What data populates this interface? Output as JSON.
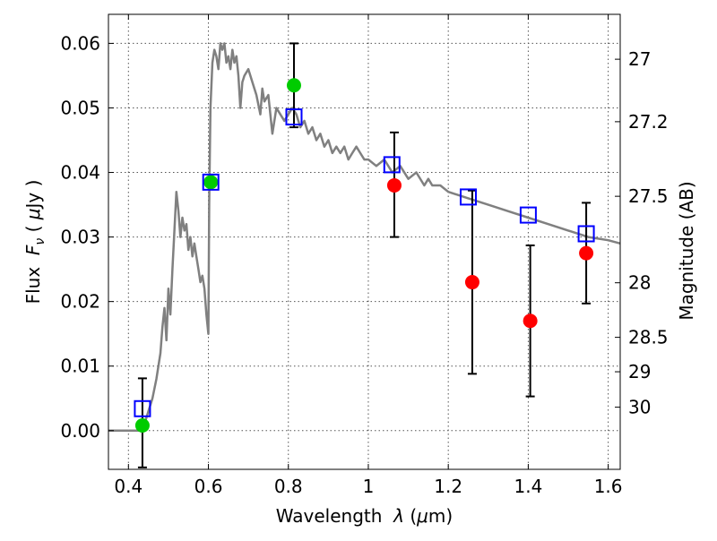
{
  "chart_data": {
    "type": "scatter",
    "xlabel": "Wavelength",
    "xlabel_symbol": "λ",
    "xlabel_unit_open": " (",
    "xlabel_unit_symbol": "μ",
    "xlabel_unit_rest": "m)",
    "ylabel": "Flux",
    "ylabel_symbol": "F",
    "ylabel_symbol_sub": "ν",
    "ylabel_unit_open": " ( ",
    "ylabel_unit_symbol": "μ",
    "ylabel_unit_rest": "Jy )",
    "y2label": "Magnitude (AB)",
    "xlim": [
      0.35,
      1.63
    ],
    "ylim": [
      -0.006,
      0.0645
    ],
    "grid": true,
    "x_ticks": [
      {
        "value": 0.4,
        "label": "0.4"
      },
      {
        "value": 0.6,
        "label": "0.6"
      },
      {
        "value": 0.8,
        "label": "0.8"
      },
      {
        "value": 1.0,
        "label": "1"
      },
      {
        "value": 1.2,
        "label": "1.2"
      },
      {
        "value": 1.4,
        "label": "1.4"
      },
      {
        "value": 1.6,
        "label": "1.6"
      }
    ],
    "y_ticks": [
      {
        "value": 0.0,
        "label": "0.00"
      },
      {
        "value": 0.01,
        "label": "0.01"
      },
      {
        "value": 0.02,
        "label": "0.02"
      },
      {
        "value": 0.03,
        "label": "0.03"
      },
      {
        "value": 0.04,
        "label": "0.04"
      },
      {
        "value": 0.05,
        "label": "0.05"
      },
      {
        "value": 0.06,
        "label": "0.06"
      }
    ],
    "y2_ticks": [
      {
        "value": 27,
        "label": "27"
      },
      {
        "value": 27.2,
        "label": "27.2"
      },
      {
        "value": 27.5,
        "label": "27.5"
      },
      {
        "value": 28,
        "label": "28"
      },
      {
        "value": 28.5,
        "label": "28.5"
      },
      {
        "value": 29,
        "label": "29"
      },
      {
        "value": 30,
        "label": "30"
      }
    ],
    "model_spectrum": {
      "color": "#808080",
      "x": [
        0.35,
        0.4,
        0.43,
        0.44,
        0.45,
        0.46,
        0.47,
        0.48,
        0.485,
        0.49,
        0.495,
        0.5,
        0.505,
        0.51,
        0.515,
        0.52,
        0.525,
        0.53,
        0.535,
        0.54,
        0.545,
        0.55,
        0.555,
        0.56,
        0.565,
        0.57,
        0.575,
        0.58,
        0.585,
        0.59,
        0.595,
        0.6,
        0.602,
        0.605,
        0.61,
        0.615,
        0.62,
        0.625,
        0.63,
        0.635,
        0.64,
        0.645,
        0.65,
        0.655,
        0.66,
        0.665,
        0.67,
        0.675,
        0.68,
        0.685,
        0.69,
        0.7,
        0.71,
        0.72,
        0.73,
        0.735,
        0.74,
        0.75,
        0.76,
        0.77,
        0.78,
        0.79,
        0.8,
        0.81,
        0.82,
        0.83,
        0.84,
        0.85,
        0.86,
        0.87,
        0.88,
        0.89,
        0.9,
        0.91,
        0.92,
        0.93,
        0.94,
        0.95,
        0.96,
        0.97,
        0.98,
        0.99,
        1.0,
        1.02,
        1.04,
        1.06,
        1.08,
        1.1,
        1.12,
        1.14,
        1.15,
        1.16,
        1.18,
        1.2,
        1.25,
        1.3,
        1.35,
        1.4,
        1.45,
        1.5,
        1.55,
        1.6,
        1.63
      ],
      "y": [
        0.0,
        0.0,
        0.0,
        0.001,
        0.003,
        0.005,
        0.008,
        0.012,
        0.016,
        0.019,
        0.014,
        0.022,
        0.018,
        0.025,
        0.031,
        0.037,
        0.034,
        0.03,
        0.033,
        0.031,
        0.032,
        0.028,
        0.03,
        0.027,
        0.029,
        0.027,
        0.025,
        0.023,
        0.024,
        0.022,
        0.018,
        0.015,
        0.035,
        0.05,
        0.057,
        0.059,
        0.058,
        0.056,
        0.06,
        0.059,
        0.06,
        0.057,
        0.058,
        0.056,
        0.059,
        0.057,
        0.058,
        0.055,
        0.05,
        0.054,
        0.055,
        0.056,
        0.054,
        0.052,
        0.049,
        0.053,
        0.051,
        0.052,
        0.046,
        0.05,
        0.049,
        0.048,
        0.049,
        0.05,
        0.049,
        0.047,
        0.048,
        0.046,
        0.047,
        0.045,
        0.046,
        0.044,
        0.045,
        0.043,
        0.044,
        0.043,
        0.044,
        0.042,
        0.043,
        0.044,
        0.043,
        0.042,
        0.042,
        0.041,
        0.042,
        0.04,
        0.041,
        0.039,
        0.04,
        0.038,
        0.039,
        0.038,
        0.038,
        0.037,
        0.036,
        0.035,
        0.034,
        0.033,
        0.032,
        0.031,
        0.03,
        0.0295,
        0.029
      ]
    },
    "model_bands": {
      "x": [
        0.435,
        0.606,
        0.814,
        1.059,
        1.25,
        1.4,
        1.545
      ],
      "y": [
        0.0034,
        0.0385,
        0.0486,
        0.0412,
        0.0362,
        0.0334,
        0.0305
      ],
      "colors": [
        "#0000ff",
        "#0000ff",
        "#0000ff",
        "#0000ff",
        "#0000ff",
        "#0000ff",
        "#0000ff"
      ]
    },
    "detections": {
      "color": "#00cc00",
      "x": [
        0.435,
        0.606,
        0.814
      ],
      "y": [
        0.0008,
        0.0385,
        0.0535
      ],
      "err_low": [
        0.0065,
        null,
        0.0065
      ],
      "err_high": [
        0.0073,
        null,
        0.0065
      ]
    },
    "observed": {
      "color": "#ff0000",
      "x": [
        1.065,
        1.26,
        1.405,
        1.545
      ],
      "y": [
        0.038,
        0.023,
        0.017,
        0.0275
      ],
      "err_low": [
        0.008,
        0.0142,
        0.0117,
        0.0078
      ],
      "err_high": [
        0.0082,
        0.0142,
        0.0117,
        0.0078
      ]
    }
  }
}
